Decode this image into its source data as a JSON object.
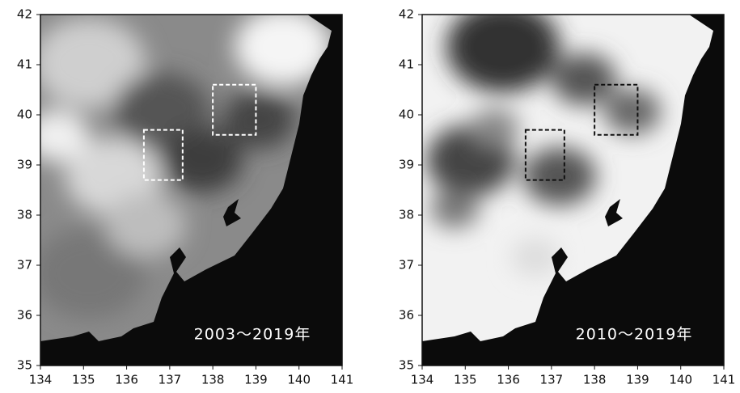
{
  "panels": [
    {
      "label": "2003～2019年",
      "xlim": [
        134,
        141
      ],
      "ylim": [
        35,
        42
      ],
      "xticks": [
        134,
        135,
        136,
        137,
        138,
        139,
        140,
        141
      ],
      "yticks": [
        35,
        36,
        37,
        38,
        39,
        40,
        41,
        42
      ],
      "box_color": "#ffffff",
      "regions": [
        {
          "lon": [
            136.4,
            137.3
          ],
          "lat": [
            38.7,
            39.7
          ]
        },
        {
          "lon": [
            138,
            139
          ],
          "lat": [
            39.6,
            40.6
          ]
        }
      ]
    },
    {
      "label": "2010～2019年",
      "xlim": [
        134,
        141
      ],
      "ylim": [
        35,
        42
      ],
      "xticks": [
        134,
        135,
        136,
        137,
        138,
        139,
        140,
        141
      ],
      "yticks": [
        35,
        36,
        37,
        38,
        39,
        40,
        41,
        42
      ],
      "box_color": "#111111",
      "regions": [
        {
          "lon": [
            136.4,
            137.3
          ],
          "lat": [
            38.7,
            39.7
          ]
        },
        {
          "lon": [
            138,
            139
          ],
          "lat": [
            39.6,
            40.6
          ]
        }
      ]
    }
  ]
}
